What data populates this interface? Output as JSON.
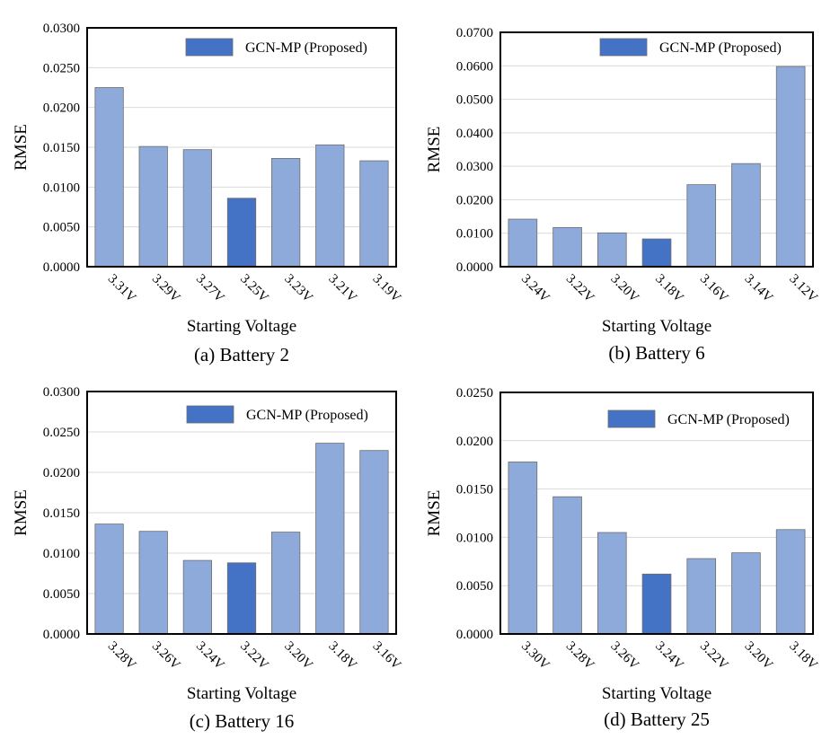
{
  "figure": {
    "bar_color": "#8eaadb",
    "highlight_color": "#4472c4",
    "bar_stroke": "#6d6d6d",
    "grid_color": "#d9d9d9"
  },
  "chart_data": [
    {
      "type": "bar",
      "caption": "(a) Battery 2",
      "xlabel": "Starting Voltage",
      "ylabel": "RMSE",
      "legend": "GCN-MP (Proposed)",
      "legend_position": "top-right",
      "grid": true,
      "ylim": [
        0,
        0.03
      ],
      "yticks": [
        "0.0000",
        "0.0050",
        "0.0100",
        "0.0150",
        "0.0200",
        "0.0250",
        "0.0300"
      ],
      "categories": [
        "3.31V",
        "3.29V",
        "3.27V",
        "3.25V",
        "3.23V",
        "3.21V",
        "3.19V"
      ],
      "values": [
        0.0225,
        0.0151,
        0.0147,
        0.0086,
        0.0136,
        0.0153,
        0.0133
      ],
      "highlight_category": "3.25V"
    },
    {
      "type": "bar",
      "caption": "(b) Battery 6",
      "xlabel": "Starting Voltage",
      "ylabel": "RMSE",
      "legend": "GCN-MP (Proposed)",
      "legend_position": "top-right",
      "grid": true,
      "ylim": [
        0,
        0.07
      ],
      "yticks": [
        "0.0000",
        "0.0100",
        "0.0200",
        "0.0300",
        "0.0400",
        "0.0500",
        "0.0600",
        "0.0700"
      ],
      "categories": [
        "3.24V",
        "3.22V",
        "3.20V",
        "3.18V",
        "3.16V",
        "3.14V",
        "3.12V"
      ],
      "values": [
        0.0142,
        0.0117,
        0.0101,
        0.0083,
        0.0245,
        0.0308,
        0.0598
      ],
      "highlight_category": "3.18V"
    },
    {
      "type": "bar",
      "caption": "(c) Battery 16",
      "xlabel": "Starting Voltage",
      "ylabel": "RMSE",
      "legend": "GCN-MP (Proposed)",
      "legend_position": "top-right",
      "grid": true,
      "ylim": [
        0,
        0.03
      ],
      "yticks": [
        "0.0000",
        "0.0050",
        "0.0100",
        "0.0150",
        "0.0200",
        "0.0250",
        "0.0300"
      ],
      "categories": [
        "3.28V",
        "3.26V",
        "3.24V",
        "3.22V",
        "3.20V",
        "3.18V",
        "3.16V"
      ],
      "values": [
        0.0136,
        0.0127,
        0.0091,
        0.0088,
        0.0126,
        0.0236,
        0.0227
      ],
      "highlight_category": "3.22V"
    },
    {
      "type": "bar",
      "caption": "(d) Battery 25",
      "xlabel": "Starting Voltage",
      "ylabel": "RMSE",
      "legend": "GCN-MP (Proposed)",
      "legend_position": "top-right",
      "grid": true,
      "ylim": [
        0,
        0.025
      ],
      "yticks": [
        "0.0000",
        "0.0050",
        "0.0100",
        "0.0150",
        "0.0200",
        "0.0250"
      ],
      "categories": [
        "3.30V",
        "3.28V",
        "3.26V",
        "3.24V",
        "3.22V",
        "3.20V",
        "3.18V"
      ],
      "values": [
        0.0178,
        0.0142,
        0.0105,
        0.0062,
        0.0078,
        0.0084,
        0.0108
      ],
      "highlight_category": "3.24V"
    }
  ]
}
